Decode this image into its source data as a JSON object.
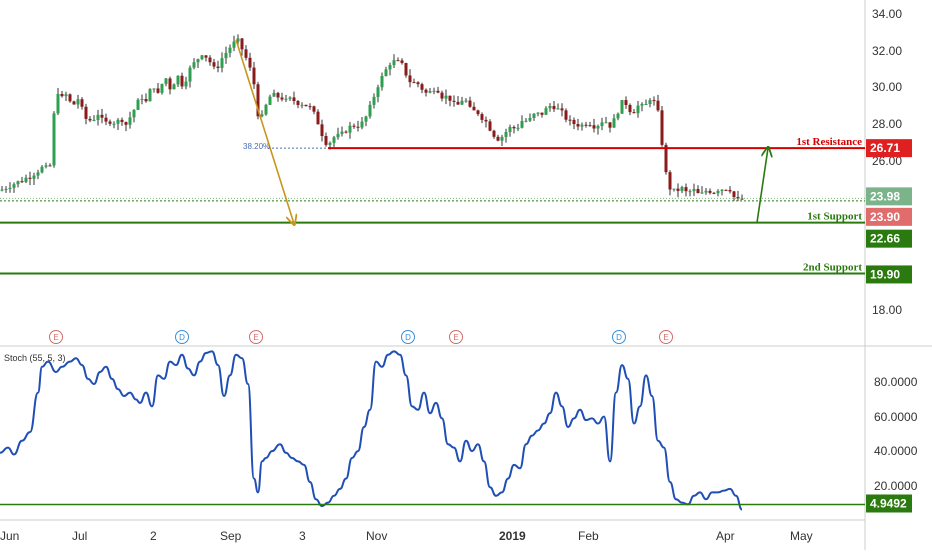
{
  "chart_data": [
    {
      "type": "candlestick",
      "ylim": [
        16.6,
        34.8
      ],
      "price_ticks": [
        "34.00",
        "32.00",
        "30.00",
        "28.00",
        "26.00",
        "18.00"
      ],
      "x_labels": [
        {
          "label": "Jun",
          "bold": false
        },
        {
          "label": "Jul",
          "bold": false
        },
        {
          "label": "2",
          "bold": false
        },
        {
          "label": "Sep",
          "bold": false
        },
        {
          "label": "3",
          "bold": false
        },
        {
          "label": "Nov",
          "bold": false
        },
        {
          "label": "2019",
          "bold": true
        },
        {
          "label": "Feb",
          "bold": false
        },
        {
          "label": "Apr",
          "bold": false
        },
        {
          "label": "May",
          "bold": false
        }
      ],
      "close_path": [
        [
          0,
          24.4
        ],
        [
          10,
          24.7
        ],
        [
          20,
          24.9
        ],
        [
          30,
          25.2
        ],
        [
          38,
          25.5
        ],
        [
          44,
          25.7
        ],
        [
          48,
          25.5
        ],
        [
          52,
          26.0
        ],
        [
          54,
          28.5
        ],
        [
          58,
          29.8
        ],
        [
          62,
          29.4
        ],
        [
          66,
          29.6
        ],
        [
          70,
          29.2
        ],
        [
          74,
          29.1
        ],
        [
          78,
          29.4
        ],
        [
          82,
          28.8
        ],
        [
          86,
          28.3
        ],
        [
          92,
          28.2
        ],
        [
          98,
          28.6
        ],
        [
          104,
          28.0
        ],
        [
          110,
          28.2
        ],
        [
          116,
          28.1
        ],
        [
          122,
          28.3
        ],
        [
          126,
          28.0
        ],
        [
          130,
          28.4
        ],
        [
          134,
          28.8
        ],
        [
          138,
          29.2
        ],
        [
          142,
          29.5
        ],
        [
          146,
          29.2
        ],
        [
          150,
          29.8
        ],
        [
          154,
          30.1
        ],
        [
          158,
          29.6
        ],
        [
          162,
          30.2
        ],
        [
          166,
          30.5
        ],
        [
          170,
          30.0
        ],
        [
          174,
          30.3
        ],
        [
          178,
          30.6
        ],
        [
          182,
          30.2
        ],
        [
          186,
          30.5
        ],
        [
          190,
          31.0
        ],
        [
          194,
          31.3
        ],
        [
          198,
          31.6
        ],
        [
          202,
          31.9
        ],
        [
          206,
          31.7
        ],
        [
          210,
          31.4
        ],
        [
          214,
          31.0
        ],
        [
          218,
          31.2
        ],
        [
          222,
          31.6
        ],
        [
          226,
          31.9
        ],
        [
          230,
          32.2
        ],
        [
          234,
          32.4
        ],
        [
          238,
          32.5
        ],
        [
          242,
          32.1
        ],
        [
          246,
          31.6
        ],
        [
          250,
          31.0
        ],
        [
          254,
          30.2
        ],
        [
          256,
          29.3
        ],
        [
          258,
          28.6
        ],
        [
          261,
          28.2
        ],
        [
          264,
          28.7
        ],
        [
          268,
          29.3
        ],
        [
          272,
          29.7
        ],
        [
          276,
          29.4
        ],
        [
          280,
          29.6
        ],
        [
          284,
          29.3
        ],
        [
          288,
          29.2
        ],
        [
          292,
          29.5
        ],
        [
          296,
          29.1
        ],
        [
          300,
          29.3
        ],
        [
          304,
          29.0
        ],
        [
          308,
          29.1
        ],
        [
          312,
          28.7
        ],
        [
          316,
          28.4
        ],
        [
          320,
          27.8
        ],
        [
          324,
          27.2
        ],
        [
          328,
          26.9
        ],
        [
          332,
          27.2
        ],
        [
          336,
          27.4
        ],
        [
          340,
          27.3
        ],
        [
          344,
          27.6
        ],
        [
          348,
          27.8
        ],
        [
          352,
          27.9
        ],
        [
          356,
          28.0
        ],
        [
          360,
          27.9
        ],
        [
          364,
          28.2
        ],
        [
          368,
          28.6
        ],
        [
          372,
          29.2
        ],
        [
          376,
          29.9
        ],
        [
          380,
          30.4
        ],
        [
          384,
          30.7
        ],
        [
          388,
          31.2
        ],
        [
          392,
          31.5
        ],
        [
          396,
          31.3
        ],
        [
          400,
          31.4
        ],
        [
          404,
          31.0
        ],
        [
          408,
          30.5
        ],
        [
          412,
          30.2
        ],
        [
          416,
          30.3
        ],
        [
          420,
          30.1
        ],
        [
          424,
          29.8
        ],
        [
          428,
          29.6
        ],
        [
          432,
          29.9
        ],
        [
          436,
          30.1
        ],
        [
          440,
          29.7
        ],
        [
          444,
          29.4
        ],
        [
          448,
          29.6
        ],
        [
          452,
          29.2
        ],
        [
          456,
          28.9
        ],
        [
          460,
          29.2
        ],
        [
          464,
          29.5
        ],
        [
          468,
          29.0
        ],
        [
          472,
          28.6
        ],
        [
          476,
          28.8
        ],
        [
          480,
          28.5
        ],
        [
          484,
          28.3
        ],
        [
          488,
          28.0
        ],
        [
          492,
          27.6
        ],
        [
          496,
          27.3
        ],
        [
          500,
          27.2
        ],
        [
          504,
          27.5
        ],
        [
          508,
          27.7
        ],
        [
          512,
          27.9
        ],
        [
          516,
          27.7
        ],
        [
          520,
          28.1
        ],
        [
          524,
          28.3
        ],
        [
          528,
          28.1
        ],
        [
          532,
          28.4
        ],
        [
          536,
          28.6
        ],
        [
          540,
          28.5
        ],
        [
          544,
          28.7
        ],
        [
          548,
          28.9
        ],
        [
          552,
          29.1
        ],
        [
          556,
          28.9
        ],
        [
          560,
          28.7
        ],
        [
          564,
          28.5
        ],
        [
          568,
          28.2
        ],
        [
          572,
          28.0
        ],
        [
          576,
          28.1
        ],
        [
          580,
          27.9
        ],
        [
          584,
          28.0
        ],
        [
          588,
          28.2
        ],
        [
          592,
          28.0
        ],
        [
          596,
          27.9
        ],
        [
          600,
          28.1
        ],
        [
          604,
          28.3
        ],
        [
          608,
          28.0
        ],
        [
          612,
          27.9
        ],
        [
          616,
          28.5
        ],
        [
          620,
          29.0
        ],
        [
          624,
          29.3
        ],
        [
          628,
          29.0
        ],
        [
          632,
          28.6
        ],
        [
          636,
          28.9
        ],
        [
          640,
          29.1
        ],
        [
          644,
          28.8
        ],
        [
          648,
          29.3
        ],
        [
          652,
          29.6
        ],
        [
          656,
          28.8
        ],
        [
          660,
          28.4
        ],
        [
          662,
          27.0
        ],
        [
          664,
          26.2
        ],
        [
          666,
          25.3
        ],
        [
          668,
          24.7
        ],
        [
          672,
          24.4
        ],
        [
          676,
          24.3
        ],
        [
          680,
          24.6
        ],
        [
          684,
          24.4
        ],
        [
          688,
          24.2
        ],
        [
          692,
          24.5
        ],
        [
          696,
          24.3
        ],
        [
          700,
          24.1
        ],
        [
          704,
          24.3
        ],
        [
          708,
          24.5
        ],
        [
          712,
          24.3
        ],
        [
          716,
          24.4
        ],
        [
          720,
          24.6
        ],
        [
          724,
          24.4
        ],
        [
          728,
          24.7
        ],
        [
          732,
          24.3
        ],
        [
          736,
          23.8
        ],
        [
          740,
          23.9
        ],
        [
          744,
          24.0
        ]
      ],
      "series": [
        {
          "name": "Price",
          "values": []
        }
      ],
      "horizontal_lines": [
        {
          "label": "1st Resistance",
          "value": 26.71,
          "color": "#d40000",
          "badge": "26.71"
        },
        {
          "label": "1st Support",
          "value": 22.66,
          "color": "#2a7a0f",
          "badge": "22.66"
        },
        {
          "label": "2nd Support",
          "value": 19.9,
          "color": "#2a7a0f",
          "badge": "19.90"
        }
      ],
      "price_badges": [
        {
          "value": 23.98,
          "text": "23.98",
          "color": "#7bb38a"
        },
        {
          "value": 23.9,
          "text": "23.90",
          "color": "#e06c6c"
        }
      ],
      "fib_label": "38.20%",
      "events": [
        {
          "x": 56,
          "letter": "E",
          "kind": "earnings"
        },
        {
          "x": 182,
          "letter": "D",
          "kind": "dividend"
        },
        {
          "x": 256,
          "letter": "E",
          "kind": "earnings"
        },
        {
          "x": 408,
          "letter": "D",
          "kind": "dividend"
        },
        {
          "x": 456,
          "letter": "E",
          "kind": "earnings"
        },
        {
          "x": 619,
          "letter": "D",
          "kind": "dividend"
        },
        {
          "x": 666,
          "letter": "E",
          "kind": "earnings"
        }
      ]
    },
    {
      "type": "line",
      "title": "Stoch (55, 5, 3)",
      "ylim": [
        0,
        100
      ],
      "y_ticks": [
        "80.0000",
        "60.0000",
        "40.0000",
        "20.0000"
      ],
      "current_badge": "4.9492",
      "reference_line": 4.9492,
      "series": [
        {
          "name": "Stoch",
          "x": [
            0,
            8,
            14,
            22,
            30,
            38,
            42,
            48,
            56,
            62,
            70,
            76,
            82,
            88,
            94,
            100,
            106,
            112,
            118,
            124,
            130,
            136,
            140,
            146,
            152,
            158,
            164,
            170,
            176,
            182,
            188,
            194,
            200,
            206,
            212,
            218,
            224,
            230,
            236,
            242,
            248,
            254,
            258,
            262,
            266,
            272,
            280,
            286,
            292,
            298,
            304,
            310,
            316,
            322,
            328,
            334,
            340,
            346,
            352,
            358,
            364,
            370,
            376,
            382,
            388,
            394,
            400,
            406,
            412,
            418,
            424,
            430,
            436,
            442,
            448,
            454,
            460,
            466,
            472,
            478,
            484,
            490,
            496,
            502,
            508,
            514,
            520,
            526,
            532,
            538,
            544,
            550,
            556,
            562,
            568,
            574,
            580,
            586,
            592,
            598,
            604,
            610,
            616,
            622,
            628,
            634,
            640,
            646,
            652,
            658,
            664,
            670,
            676,
            682,
            688,
            694,
            700,
            706,
            712,
            718,
            724,
            730,
            736,
            742
          ],
          "values": [
            35,
            38,
            34,
            42,
            47,
            70,
            85,
            88,
            82,
            85,
            88,
            90,
            86,
            78,
            75,
            82,
            85,
            78,
            72,
            68,
            70,
            66,
            64,
            70,
            62,
            80,
            78,
            88,
            86,
            92,
            84,
            80,
            88,
            93,
            94,
            86,
            68,
            80,
            92,
            90,
            75,
            20,
            12,
            30,
            32,
            36,
            40,
            35,
            32,
            30,
            28,
            18,
            8,
            4,
            6,
            10,
            14,
            20,
            32,
            36,
            50,
            60,
            88,
            85,
            92,
            94,
            92,
            80,
            62,
            60,
            70,
            58,
            64,
            55,
            40,
            38,
            30,
            42,
            36,
            40,
            30,
            15,
            10,
            12,
            20,
            28,
            26,
            40,
            45,
            48,
            52,
            58,
            70,
            62,
            50,
            55,
            60,
            54,
            55,
            52,
            56,
            30,
            70,
            86,
            78,
            52,
            62,
            80,
            68,
            42,
            38,
            18,
            8,
            6,
            5,
            10,
            12,
            8,
            12,
            12,
            13,
            14,
            10,
            2
          ],
          "color": "#1f4fb5"
        }
      ]
    }
  ]
}
